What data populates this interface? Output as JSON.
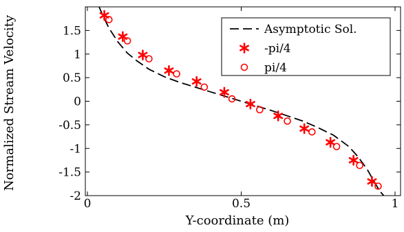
{
  "chart_data": {
    "type": "scatter",
    "title": "",
    "xlabel": "Y-coordinate (m)",
    "ylabel": "Normalized Stream Velocity",
    "xlim": [
      0,
      1
    ],
    "ylim": [
      -2,
      2
    ],
    "x_ticks": [
      0,
      0.5,
      1
    ],
    "x_tick_labels": [
      "0",
      "0.5",
      "1"
    ],
    "y_ticks": [
      -2,
      -1.5,
      -1,
      -0.5,
      0,
      0.5,
      1,
      1.5
    ],
    "y_tick_labels": [
      "-2",
      "-1.5",
      "-1",
      "-0.5",
      "0",
      "0.5",
      "1",
      "1.5"
    ],
    "grid": false,
    "legend_position": "top-right",
    "series": [
      {
        "name": "Asymptotic Sol.",
        "style": "dashed-line",
        "color": "#000000",
        "x": [
          0.038,
          0.05,
          0.07,
          0.1,
          0.13,
          0.16,
          0.2,
          0.25,
          0.3,
          0.35,
          0.4,
          0.45,
          0.5,
          0.55,
          0.6,
          0.65,
          0.7,
          0.75,
          0.8,
          0.85,
          0.88,
          0.91,
          0.93,
          0.95,
          0.963
        ],
        "y": [
          2.0,
          1.82,
          1.55,
          1.25,
          1.02,
          0.86,
          0.68,
          0.52,
          0.4,
          0.3,
          0.2,
          0.1,
          0.0,
          -0.1,
          -0.2,
          -0.31,
          -0.42,
          -0.56,
          -0.72,
          -0.96,
          -1.18,
          -1.45,
          -1.68,
          -1.9,
          -2.0
        ]
      },
      {
        "name": "-pi/4",
        "style": "asterisk",
        "color": "#ff0000",
        "x": [
          0.055,
          0.115,
          0.18,
          0.265,
          0.355,
          0.445,
          0.53,
          0.62,
          0.705,
          0.79,
          0.865,
          0.925
        ],
        "y": [
          1.82,
          1.37,
          0.98,
          0.65,
          0.42,
          0.19,
          -0.06,
          -0.31,
          -0.58,
          -0.87,
          -1.25,
          -1.7
        ]
      },
      {
        "name": "pi/4",
        "style": "open-circle",
        "color": "#ff0000",
        "x": [
          0.07,
          0.13,
          0.2,
          0.29,
          0.38,
          0.47,
          0.56,
          0.65,
          0.73,
          0.81,
          0.885,
          0.945
        ],
        "y": [
          1.73,
          1.28,
          0.9,
          0.58,
          0.3,
          0.05,
          -0.18,
          -0.42,
          -0.65,
          -0.96,
          -1.36,
          -1.8
        ]
      }
    ]
  }
}
